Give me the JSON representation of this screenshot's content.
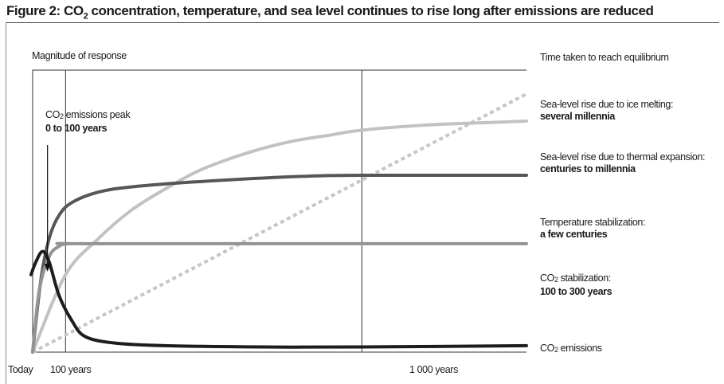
{
  "header": {
    "title_before": "Figure 2: CO",
    "title_sub": "2",
    "title_after": " concentration, temperature, and sea level continues to rise long after emissions are reduced"
  },
  "chart_data": {
    "type": "line",
    "ylabel": "Magnitude of response",
    "right_header": "Time taken to reach equilibrium",
    "xticks": [
      "Today",
      "100 years",
      "1 000 years"
    ],
    "annotation": {
      "prefix": "CO",
      "sub": "2",
      "suffix": " emissions peak",
      "bold": "0 to 100 years"
    },
    "series": [
      {
        "key": "ice",
        "label": "Sea-level rise due to ice melting:",
        "label_bold": "several millennia",
        "color": "#c6c6c6",
        "style": "dotted",
        "points": [
          [
            0,
            0
          ],
          [
            1500,
            1.0
          ]
        ]
      },
      {
        "key": "thermal",
        "label": "Sea-level rise due to thermal expansion:",
        "label_bold": "centuries to millennia",
        "color": "#c2c2c2",
        "style": "solid",
        "points": [
          [
            0,
            0
          ],
          [
            100,
            0.3
          ],
          [
            200,
            0.44
          ],
          [
            300,
            0.55
          ],
          [
            400,
            0.63
          ],
          [
            500,
            0.7
          ],
          [
            600,
            0.75
          ],
          [
            700,
            0.79
          ],
          [
            800,
            0.82
          ],
          [
            900,
            0.84
          ],
          [
            1000,
            0.86
          ],
          [
            1200,
            0.88
          ],
          [
            1400,
            0.89
          ],
          [
            1500,
            0.895
          ]
        ]
      },
      {
        "key": "temp",
        "label": "Temperature stabilization:",
        "label_bold": "a few centuries",
        "color": "#565656",
        "style": "solid",
        "points": [
          [
            0,
            0
          ],
          [
            25,
            0.28
          ],
          [
            50,
            0.44
          ],
          [
            80,
            0.53
          ],
          [
            120,
            0.58
          ],
          [
            200,
            0.62
          ],
          [
            300,
            0.64
          ],
          [
            500,
            0.66
          ],
          [
            800,
            0.68
          ],
          [
            1000,
            0.685
          ],
          [
            1500,
            0.685
          ]
        ]
      },
      {
        "key": "co2stab",
        "label_prefix": "CO",
        "label_sub": "2",
        "label_suffix": " stabilization:",
        "label_bold": "100 to 300 years",
        "color": "#939393",
        "style": "solid",
        "points": [
          [
            0,
            0
          ],
          [
            20,
            0.24
          ],
          [
            50,
            0.37
          ],
          [
            80,
            0.41
          ],
          [
            110,
            0.42
          ],
          [
            200,
            0.42
          ],
          [
            1500,
            0.42
          ]
        ]
      },
      {
        "key": "co2emis",
        "label_prefix": "CO",
        "label_sub": "2",
        "label_suffix": " emissions",
        "color": "#1c1c1c",
        "style": "solid",
        "points": [
          [
            -5,
            0.3
          ],
          [
            10,
            0.35
          ],
          [
            30,
            0.39
          ],
          [
            50,
            0.35
          ],
          [
            80,
            0.22
          ],
          [
            120,
            0.12
          ],
          [
            160,
            0.06
          ],
          [
            250,
            0.035
          ],
          [
            400,
            0.025
          ],
          [
            700,
            0.02
          ],
          [
            1000,
            0.02
          ],
          [
            1500,
            0.025
          ]
        ]
      }
    ],
    "xlim": [
      0,
      1500
    ],
    "ylim": [
      0,
      1
    ],
    "xref_lines": [
      100,
      1000
    ],
    "peak_marker_year": 50
  }
}
